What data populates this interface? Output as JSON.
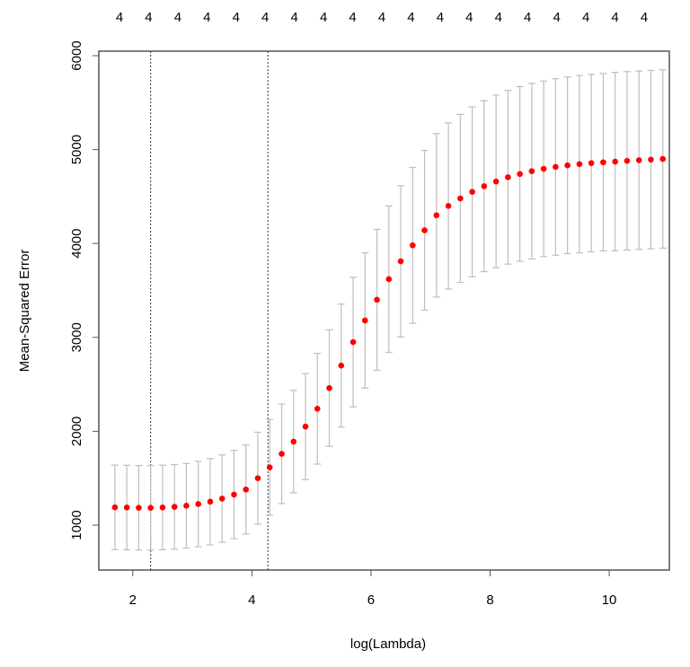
{
  "chart_data": {
    "type": "errorbar",
    "xlabel": "log(Lambda)",
    "ylabel": "Mean-Squared Error",
    "top_labels": [
      "4",
      "4",
      "4",
      "4",
      "4",
      "4",
      "4",
      "4",
      "4",
      "4",
      "4",
      "4",
      "4",
      "4",
      "4",
      "4",
      "4",
      "4",
      "4"
    ],
    "x": [
      1.7,
      1.9,
      2.1,
      2.3,
      2.5,
      2.7,
      2.9,
      3.1,
      3.3,
      3.5,
      3.7,
      3.9,
      4.1,
      4.3,
      4.5,
      4.7,
      4.9,
      5.1,
      5.3,
      5.5,
      5.7,
      5.9,
      6.1,
      6.3,
      6.5,
      6.7,
      6.9,
      7.1,
      7.3,
      7.5,
      7.7,
      7.9,
      8.1,
      8.3,
      8.5,
      8.7,
      8.9,
      9.1,
      9.3,
      9.5,
      9.7,
      9.9,
      10.1,
      10.3,
      10.5,
      10.7,
      10.9
    ],
    "values": [
      1190,
      1188,
      1185,
      1185,
      1188,
      1195,
      1207,
      1225,
      1250,
      1283,
      1326,
      1380,
      1500,
      1615,
      1760,
      1890,
      2050,
      2240,
      2460,
      2700,
      2950,
      3180,
      3400,
      3620,
      3810,
      3980,
      4140,
      4300,
      4400,
      4480,
      4550,
      4610,
      4660,
      4705,
      4740,
      4770,
      4795,
      4815,
      4832,
      4845,
      4856,
      4865,
      4872,
      4880,
      4887,
      4893,
      4900
    ],
    "errors": [
      450,
      450,
      450,
      450,
      450,
      450,
      450,
      455,
      460,
      465,
      470,
      475,
      490,
      510,
      530,
      545,
      565,
      590,
      620,
      655,
      690,
      720,
      750,
      780,
      805,
      830,
      850,
      870,
      885,
      895,
      905,
      910,
      920,
      925,
      930,
      935,
      935,
      940,
      940,
      945,
      945,
      945,
      950,
      950,
      950,
      950,
      950
    ],
    "color": "#ff0000",
    "error_color": "#bebebe",
    "vlines": [
      2.3,
      4.27
    ],
    "xlim": [
      1.43,
      11.01
    ],
    "ylim": [
      522,
      6048
    ],
    "xticks": [
      2,
      4,
      6,
      8,
      10
    ],
    "yticks": [
      1000,
      2000,
      3000,
      4000,
      5000,
      6000
    ]
  }
}
